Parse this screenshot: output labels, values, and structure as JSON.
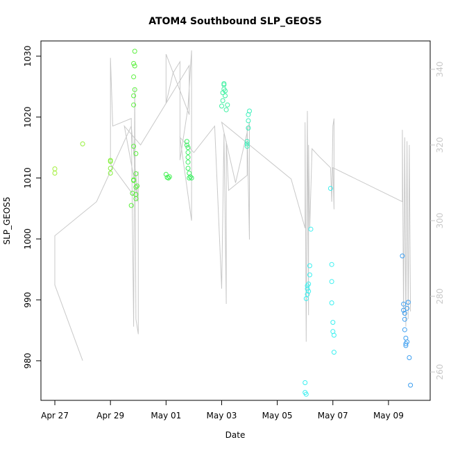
{
  "chart_data": {
    "type": "scatter",
    "title": "ATOM4 Southbound SLP_GEOS5",
    "xlabel": "Date",
    "ylabel": "SLP_GEOS5",
    "xlim": [
      "2010-04-26T12:00",
      "2010-05-10T12:00"
    ],
    "ylim": [
      973.5,
      1032.5
    ],
    "x_ticks": [
      {
        "date": "2010-04-27",
        "label": "Apr 27"
      },
      {
        "date": "2010-04-29",
        "label": "Apr 29"
      },
      {
        "date": "2010-05-01",
        "label": "May 01"
      },
      {
        "date": "2010-05-03",
        "label": "May 03"
      },
      {
        "date": "2010-05-05",
        "label": "May 05"
      },
      {
        "date": "2010-05-07",
        "label": "May 07"
      },
      {
        "date": "2010-05-09",
        "label": "May 09"
      }
    ],
    "y_ticks": [
      980,
      990,
      1000,
      1010,
      1020,
      1030
    ],
    "y2_ticks": [
      260,
      280,
      300,
      320,
      340
    ],
    "y2lim": [
      252.5,
      347.5
    ],
    "grid": false,
    "points": [
      {
        "x": "2010-04-27T00:00",
        "y": 1011.5,
        "color": "#a3f03c"
      },
      {
        "x": "2010-04-27T00:00",
        "y": 1010.8,
        "color": "#a3f03c"
      },
      {
        "x": "2010-04-28T00:00",
        "y": 1015.6,
        "color": "#96f03c"
      },
      {
        "x": "2010-04-29T00:00",
        "y": 1012.9,
        "color": "#84f03c"
      },
      {
        "x": "2010-04-29T00:00",
        "y": 1012.7,
        "color": "#84f03c"
      },
      {
        "x": "2010-04-29T00:00",
        "y": 1011.6,
        "color": "#84f03c"
      },
      {
        "x": "2010-04-29T00:00",
        "y": 1010.8,
        "color": "#84f03c"
      },
      {
        "x": "2010-04-29T18:00",
        "y": 1005.5,
        "color": "#5af03c"
      },
      {
        "x": "2010-04-29T19:00",
        "y": 1007.5,
        "color": "#5af03c"
      },
      {
        "x": "2010-04-29T20:00",
        "y": 1009.7,
        "color": "#5af03c"
      },
      {
        "x": "2010-04-29T20:00",
        "y": 1009.6,
        "color": "#5af03c"
      },
      {
        "x": "2010-04-29T20:00",
        "y": 1015.2,
        "color": "#5af03c"
      },
      {
        "x": "2010-04-29T20:00",
        "y": 1022.0,
        "color": "#5af03c"
      },
      {
        "x": "2010-04-29T20:00",
        "y": 1023.5,
        "color": "#5af03c"
      },
      {
        "x": "2010-04-29T20:00",
        "y": 1026.6,
        "color": "#5af03c"
      },
      {
        "x": "2010-04-29T20:00",
        "y": 1028.8,
        "color": "#5af03c"
      },
      {
        "x": "2010-04-29T21:00",
        "y": 1030.8,
        "color": "#5af03c"
      },
      {
        "x": "2010-04-29T21:00",
        "y": 1028.4,
        "color": "#5af03c"
      },
      {
        "x": "2010-04-29T21:00",
        "y": 1024.5,
        "color": "#5af03c"
      },
      {
        "x": "2010-04-29T22:00",
        "y": 1014.0,
        "color": "#5af03c"
      },
      {
        "x": "2010-04-29T22:00",
        "y": 1010.7,
        "color": "#5af03c"
      },
      {
        "x": "2010-04-29T22:00",
        "y": 1008.5,
        "color": "#5af03c"
      },
      {
        "x": "2010-04-29T22:00",
        "y": 1007.3,
        "color": "#5af03c"
      },
      {
        "x": "2010-04-29T22:00",
        "y": 1006.6,
        "color": "#5af03c"
      },
      {
        "x": "2010-04-29T23:00",
        "y": 1008.7,
        "color": "#5af03c"
      },
      {
        "x": "2010-05-01T00:00",
        "y": 1010.6,
        "color": "#3cf04d"
      },
      {
        "x": "2010-05-01T01:00",
        "y": 1010.1,
        "color": "#3cf04d"
      },
      {
        "x": "2010-05-01T02:00",
        "y": 1010.0,
        "color": "#3cf04d"
      },
      {
        "x": "2010-05-01T03:00",
        "y": 1010.2,
        "color": "#3cf04d"
      },
      {
        "x": "2010-05-01T18:00",
        "y": 1016.0,
        "color": "#3cf063"
      },
      {
        "x": "2010-05-01T18:00",
        "y": 1015.4,
        "color": "#3cf063"
      },
      {
        "x": "2010-05-01T19:00",
        "y": 1015.0,
        "color": "#3cf063"
      },
      {
        "x": "2010-05-01T19:00",
        "y": 1014.2,
        "color": "#3cf063"
      },
      {
        "x": "2010-05-01T19:00",
        "y": 1013.4,
        "color": "#3cf063"
      },
      {
        "x": "2010-05-01T19:00",
        "y": 1012.6,
        "color": "#3cf063"
      },
      {
        "x": "2010-05-01T19:00",
        "y": 1011.6,
        "color": "#3cf063"
      },
      {
        "x": "2010-05-01T20:00",
        "y": 1010.8,
        "color": "#3cf063"
      },
      {
        "x": "2010-05-01T20:00",
        "y": 1010.0,
        "color": "#3cf063"
      },
      {
        "x": "2010-05-01T21:00",
        "y": 1010.2,
        "color": "#3cf063"
      },
      {
        "x": "2010-05-01T22:00",
        "y": 1010.0,
        "color": "#3cf063"
      },
      {
        "x": "2010-05-03T00:00",
        "y": 1021.8,
        "color": "#3cf0a0"
      },
      {
        "x": "2010-05-03T01:00",
        "y": 1022.7,
        "color": "#3cf0a0"
      },
      {
        "x": "2010-05-03T01:00",
        "y": 1024.0,
        "color": "#3cf0a0"
      },
      {
        "x": "2010-05-03T02:00",
        "y": 1024.6,
        "color": "#3cf0a0"
      },
      {
        "x": "2010-05-03T02:00",
        "y": 1025.3,
        "color": "#3cf0a0"
      },
      {
        "x": "2010-05-03T02:00",
        "y": 1025.5,
        "color": "#3cf0a0"
      },
      {
        "x": "2010-05-03T03:00",
        "y": 1024.3,
        "color": "#3cf0a0"
      },
      {
        "x": "2010-05-03T03:00",
        "y": 1023.5,
        "color": "#3cf0a0"
      },
      {
        "x": "2010-05-03T04:00",
        "y": 1021.2,
        "color": "#3cf0a0"
      },
      {
        "x": "2010-05-03T05:00",
        "y": 1022.0,
        "color": "#3cf0a0"
      },
      {
        "x": "2010-05-03T22:00",
        "y": 1015.2,
        "color": "#3cf0bb"
      },
      {
        "x": "2010-05-03T22:00",
        "y": 1015.6,
        "color": "#3cf0bb"
      },
      {
        "x": "2010-05-03T22:00",
        "y": 1016.0,
        "color": "#3cf0bb"
      },
      {
        "x": "2010-05-03T23:00",
        "y": 1018.2,
        "color": "#3cf0bb"
      },
      {
        "x": "2010-05-03T23:00",
        "y": 1019.4,
        "color": "#3cf0bb"
      },
      {
        "x": "2010-05-03T23:00",
        "y": 1020.4,
        "color": "#3cf0bb"
      },
      {
        "x": "2010-05-04T00:00",
        "y": 1021.0,
        "color": "#3cf0bb"
      },
      {
        "x": "2010-05-06T00:00",
        "y": 976.4,
        "color": "#3cf0f0"
      },
      {
        "x": "2010-05-06T00:00",
        "y": 974.8,
        "color": "#3cf0f0"
      },
      {
        "x": "2010-05-06T01:00",
        "y": 974.5,
        "color": "#3cf0f0"
      },
      {
        "x": "2010-05-06T01:00",
        "y": 990.2,
        "color": "#3cf0f0"
      },
      {
        "x": "2010-05-06T02:00",
        "y": 990.9,
        "color": "#3cf0f0"
      },
      {
        "x": "2010-05-06T02:00",
        "y": 991.8,
        "color": "#3cf0f0"
      },
      {
        "x": "2010-05-06T02:00",
        "y": 992.3,
        "color": "#3cf0f0"
      },
      {
        "x": "2010-05-06T03:00",
        "y": 992.6,
        "color": "#3cf0f0"
      },
      {
        "x": "2010-05-06T03:00",
        "y": 991.4,
        "color": "#3cf0f0"
      },
      {
        "x": "2010-05-06T04:00",
        "y": 994.1,
        "color": "#3cf0f0"
      },
      {
        "x": "2010-05-06T04:00",
        "y": 995.6,
        "color": "#3cf0f0"
      },
      {
        "x": "2010-05-06T05:00",
        "y": 1001.6,
        "color": "#3cf0f0"
      },
      {
        "x": "2010-05-06T22:00",
        "y": 1008.3,
        "color": "#3cf0f0"
      },
      {
        "x": "2010-05-06T23:00",
        "y": 995.8,
        "color": "#3cf0f0"
      },
      {
        "x": "2010-05-06T23:00",
        "y": 993.0,
        "color": "#3cf0f0"
      },
      {
        "x": "2010-05-06T23:00",
        "y": 989.5,
        "color": "#3cf0f0"
      },
      {
        "x": "2010-05-07T00:00",
        "y": 986.3,
        "color": "#3cf0f0"
      },
      {
        "x": "2010-05-07T00:00",
        "y": 984.8,
        "color": "#3cf0f0"
      },
      {
        "x": "2010-05-07T01:00",
        "y": 984.2,
        "color": "#3cf0f0"
      },
      {
        "x": "2010-05-07T01:00",
        "y": 981.4,
        "color": "#3cf0f0"
      },
      {
        "x": "2010-05-09T12:00",
        "y": 997.2,
        "color": "#3c9ef0"
      },
      {
        "x": "2010-05-09T13:00",
        "y": 989.3,
        "color": "#3c9ef0"
      },
      {
        "x": "2010-05-09T13:00",
        "y": 988.3,
        "color": "#3c9ef0"
      },
      {
        "x": "2010-05-09T14:00",
        "y": 987.8,
        "color": "#3c9ef0"
      },
      {
        "x": "2010-05-09T14:00",
        "y": 986.8,
        "color": "#3c9ef0"
      },
      {
        "x": "2010-05-09T14:00",
        "y": 985.1,
        "color": "#3c9ef0"
      },
      {
        "x": "2010-05-09T15:00",
        "y": 983.7,
        "color": "#3c9ef0"
      },
      {
        "x": "2010-05-09T15:00",
        "y": 982.8,
        "color": "#3c9ef0"
      },
      {
        "x": "2010-05-09T15:00",
        "y": 982.5,
        "color": "#3c9ef0"
      },
      {
        "x": "2010-05-09T16:00",
        "y": 983.1,
        "color": "#3c9ef0"
      },
      {
        "x": "2010-05-09T16:00",
        "y": 988.6,
        "color": "#3c9ef0"
      },
      {
        "x": "2010-05-09T17:00",
        "y": 989.6,
        "color": "#3c9ef0"
      },
      {
        "x": "2010-05-09T18:00",
        "y": 980.5,
        "color": "#3c9ef0"
      },
      {
        "x": "2010-05-09T19:00",
        "y": 976.0,
        "color": "#3c9ef0"
      }
    ],
    "secondary_line": {
      "color": "#c8c8c8",
      "axis": "right",
      "points": [
        [
          "2010-04-28T00:00",
          263
        ],
        [
          "2010-04-27T00:00",
          283
        ],
        [
          "2010-04-27T00:00",
          296
        ],
        [
          "2010-04-28T12:00",
          305
        ],
        [
          "2010-04-29T18:00",
          325
        ],
        [
          "2010-04-30T00:00",
          305
        ],
        [
          "2010-04-29T00:00",
          315
        ],
        [
          "2010-04-29T00:00",
          343
        ],
        [
          "2010-04-29T02:00",
          325
        ],
        [
          "2010-04-29T18:00",
          327
        ],
        [
          "2010-04-29T20:00",
          272
        ],
        [
          "2010-04-29T21:00",
          335
        ],
        [
          "2010-04-29T22:00",
          274
        ],
        [
          "2010-04-30T00:00",
          270
        ],
        [
          "2010-04-30T00:00",
          313
        ],
        [
          "2010-04-30T00:00",
          305
        ],
        [
          "2010-04-29T12:00",
          325
        ],
        [
          "2010-04-30T02:00",
          320
        ],
        [
          "2010-05-01T20:00",
          341
        ],
        [
          "2010-05-01T20:00",
          328
        ],
        [
          "2010-05-01T00:00",
          344
        ],
        [
          "2010-05-01T00:00",
          331
        ],
        [
          "2010-05-01T06:00",
          339
        ],
        [
          "2010-05-01T12:00",
          342
        ],
        [
          "2010-05-01T12:00",
          316
        ],
        [
          "2010-05-01T19:00",
          330
        ],
        [
          "2010-05-01T22:00",
          345
        ],
        [
          "2010-05-01T22:00",
          300
        ],
        [
          "2010-05-01T12:00",
          322
        ],
        [
          "2010-05-02T00:00",
          318
        ],
        [
          "2010-05-02T18:00",
          325
        ],
        [
          "2010-05-03T00:00",
          282
        ],
        [
          "2010-05-03T02:00",
          323
        ],
        [
          "2010-05-03T04:00",
          278
        ],
        [
          "2010-05-03T04:00",
          321
        ],
        [
          "2010-05-03T06:00",
          308
        ],
        [
          "2010-05-03T22:00",
          312
        ],
        [
          "2010-05-03T22:00",
          325
        ],
        [
          "2010-05-04T00:00",
          295
        ],
        [
          "2010-05-04T00:00",
          326
        ],
        [
          "2010-05-03T12:00",
          310
        ],
        [
          "2010-05-03T00:00",
          326
        ],
        [
          "2010-05-05T12:00",
          311
        ],
        [
          "2010-05-06T00:00",
          298
        ],
        [
          "2010-05-06T00:00",
          326
        ],
        [
          "2010-05-06T01:00",
          268
        ],
        [
          "2010-05-06T02:00",
          329
        ],
        [
          "2010-05-06T03:00",
          275
        ],
        [
          "2010-05-06T03:00",
          320
        ],
        [
          "2010-05-06T04:00",
          298
        ],
        [
          "2010-05-06T06:00",
          319
        ],
        [
          "2010-05-06T12:00",
          317
        ],
        [
          "2010-05-06T22:00",
          314
        ],
        [
          "2010-05-06T23:00",
          305
        ],
        [
          "2010-05-07T00:00",
          325
        ],
        [
          "2010-05-07T01:00",
          327
        ],
        [
          "2010-05-07T01:00",
          303
        ],
        [
          "2010-05-07T00:00",
          314
        ],
        [
          "2010-05-09T12:00",
          305
        ],
        [
          "2010-05-09T12:00",
          324
        ],
        [
          "2010-05-09T13:00",
          275
        ],
        [
          "2010-05-09T14:00",
          322
        ],
        [
          "2010-05-09T15:00",
          272
        ],
        [
          "2010-05-09T16:00",
          321
        ],
        [
          "2010-05-09T17:00",
          274
        ],
        [
          "2010-05-09T18:00",
          320
        ],
        [
          "2010-05-09T19:00",
          276
        ]
      ]
    }
  }
}
